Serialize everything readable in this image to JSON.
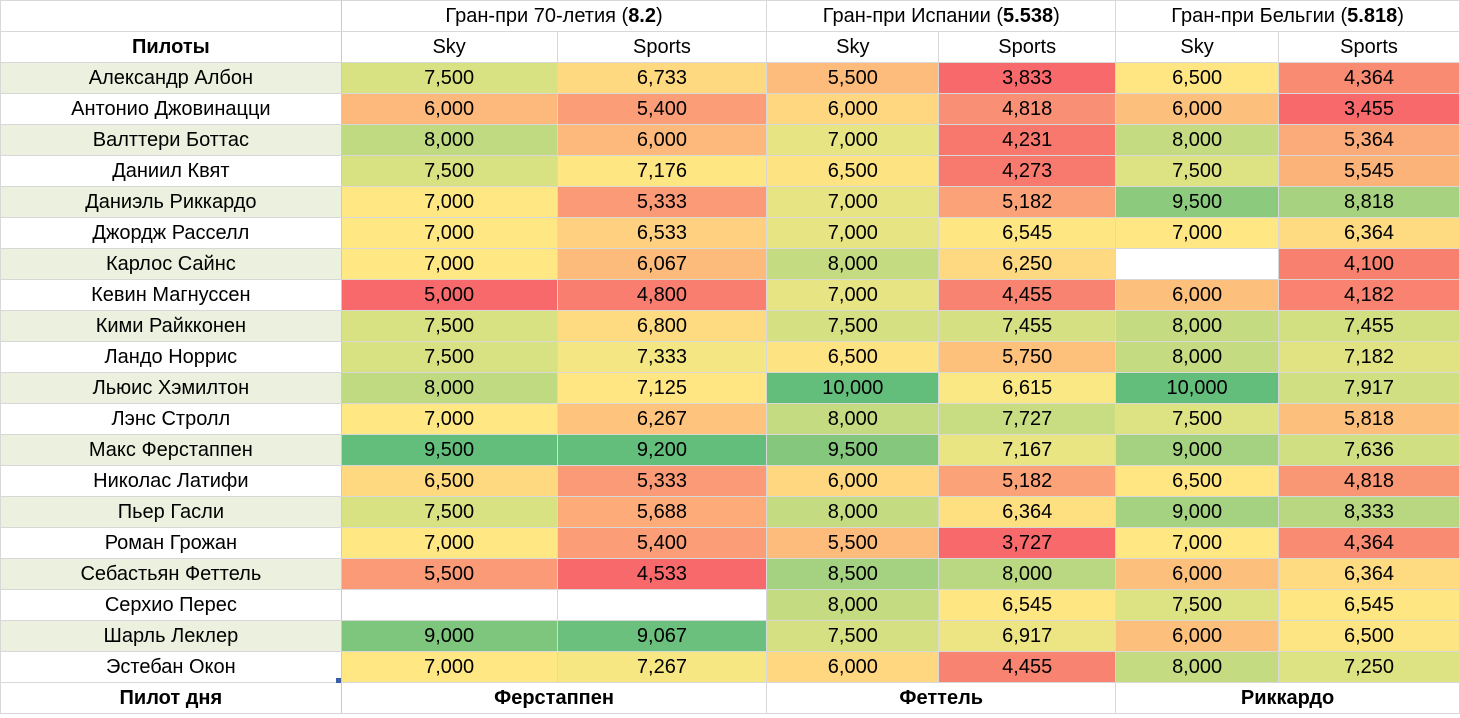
{
  "header": {
    "pilots_label": "Пилоты",
    "races": [
      {
        "name": "Гран-при 70-летия (",
        "score": "8.2",
        "close": ")"
      },
      {
        "name": "Гран-при Испании (",
        "score": "5.538",
        "close": ")"
      },
      {
        "name": "Гран-при Бельгии (",
        "score": "5.818",
        "close": ")"
      }
    ],
    "sub_columns": [
      "Sky",
      "Sports"
    ]
  },
  "rows": [
    {
      "pilot": "Александр Албон",
      "values": [
        "7,500",
        "6,733",
        "5,500",
        "3,833",
        "6,500",
        "4,364"
      ],
      "colors": [
        "#d9e282",
        "#ffd97f",
        "#fdbc7b",
        "#f8696b",
        "#ffe683",
        "#f98b73"
      ]
    },
    {
      "pilot": "Антонио Джовинацци",
      "values": [
        "6,000",
        "5,400",
        "6,000",
        "4,818",
        "6,000",
        "3,455"
      ],
      "colors": [
        "#fdb87b",
        "#fb9d77",
        "#fed780",
        "#f98f74",
        "#fdc07c",
        "#f8696b"
      ]
    },
    {
      "pilot": "Валттери Боттас",
      "values": [
        "8,000",
        "6,000",
        "7,000",
        "4,231",
        "8,000",
        "5,364"
      ],
      "colors": [
        "#c0da81",
        "#fdb87b",
        "#e6e483",
        "#f8786e",
        "#c4db81",
        "#fbaa79"
      ]
    },
    {
      "pilot": "Даниил Квят",
      "values": [
        "7,500",
        "7,176",
        "6,500",
        "4,273",
        "7,500",
        "5,545"
      ],
      "colors": [
        "#d9e282",
        "#fee683",
        "#fee382",
        "#f87a6e",
        "#dde282",
        "#fcb37a"
      ]
    },
    {
      "pilot": "Даниэль Риккардо",
      "values": [
        "7,000",
        "5,333",
        "7,000",
        "5,182",
        "9,500",
        "8,818"
      ],
      "colors": [
        "#ffe884",
        "#fb9a76",
        "#e6e483",
        "#fca279",
        "#8ccb7e",
        "#a7d280"
      ]
    },
    {
      "pilot": "Джордж Расселл",
      "values": [
        "7,000",
        "6,533",
        "7,000",
        "6,545",
        "7,000",
        "6,364"
      ],
      "colors": [
        "#ffe884",
        "#fed07f",
        "#e6e483",
        "#fee683",
        "#ffe884",
        "#fedb81"
      ]
    },
    {
      "pilot": "Карлос Сайнс",
      "values": [
        "7,000",
        "6,067",
        "8,000",
        "6,250",
        "",
        "4,100"
      ],
      "colors": [
        "#ffe884",
        "#fdbb7b",
        "#c4db81",
        "#fed981",
        "#ffffff",
        "#f8806f"
      ]
    },
    {
      "pilot": "Кевин Магнуссен",
      "values": [
        "5,000",
        "4,800",
        "7,000",
        "4,455",
        "6,000",
        "4,182"
      ],
      "colors": [
        "#f8696b",
        "#f97e6f",
        "#e6e483",
        "#f98371",
        "#fdc07c",
        "#f98370"
      ]
    },
    {
      "pilot": "Кими Райкконен",
      "values": [
        "7,500",
        "6,800",
        "7,500",
        "7,455",
        "8,000",
        "7,455"
      ],
      "colors": [
        "#d9e282",
        "#fedb81",
        "#d5e082",
        "#d4e082",
        "#c4db81",
        "#d3e082"
      ]
    },
    {
      "pilot": "Ландо Норрис",
      "values": [
        "7,500",
        "7,333",
        "6,500",
        "5,750",
        "8,000",
        "7,182"
      ],
      "colors": [
        "#d9e282",
        "#f3e683",
        "#fee382",
        "#fdc17c",
        "#c4db81",
        "#e1e383"
      ]
    },
    {
      "pilot": "Льюис Хэмилтон",
      "values": [
        "8,000",
        "7,125",
        "10,000",
        "6,615",
        "10,000",
        "7,917"
      ],
      "colors": [
        "#c0da81",
        "#ffe683",
        "#63be7b",
        "#f9e883",
        "#63be7b",
        "#cfdf82"
      ]
    },
    {
      "pilot": "Лэнс Стролл",
      "values": [
        "7,000",
        "6,267",
        "8,000",
        "7,727",
        "7,500",
        "5,818"
      ],
      "colors": [
        "#ffe884",
        "#fec47d",
        "#c4db81",
        "#c8dc81",
        "#dde282",
        "#fdc07c"
      ]
    },
    {
      "pilot": "Макс Ферстаппен",
      "values": [
        "9,500",
        "9,200",
        "9,500",
        "7,167",
        "9,000",
        "7,636"
      ],
      "colors": [
        "#63be7b",
        "#63be7b",
        "#84c77d",
        "#e9e583",
        "#a5d280",
        "#d0df82"
      ]
    },
    {
      "pilot": "Николас Латифи",
      "values": [
        "6,500",
        "5,333",
        "6,000",
        "5,182",
        "6,500",
        "4,818"
      ],
      "colors": [
        "#fed980",
        "#fb9a76",
        "#fed780",
        "#fca279",
        "#ffe683",
        "#f99673"
      ]
    },
    {
      "pilot": "Пьер Гасли",
      "values": [
        "7,500",
        "5,688",
        "8,000",
        "6,364",
        "9,000",
        "8,333"
      ],
      "colors": [
        "#d9e282",
        "#fcab79",
        "#c4db81",
        "#fee081",
        "#a5d280",
        "#b8d780"
      ]
    },
    {
      "pilot": "Роман Грожан",
      "values": [
        "7,000",
        "5,400",
        "5,500",
        "3,727",
        "7,000",
        "4,364"
      ],
      "colors": [
        "#ffe884",
        "#fb9d77",
        "#fdbc7b",
        "#f8696b",
        "#ffe884",
        "#f98b73"
      ]
    },
    {
      "pilot": "Себастьян Феттель",
      "values": [
        "5,500",
        "4,533",
        "8,500",
        "8,000",
        "6,000",
        "6,364"
      ],
      "colors": [
        "#fb9a76",
        "#f8696b",
        "#a5d280",
        "#b9d881",
        "#fdc07c",
        "#fedb81"
      ]
    },
    {
      "pilot": "Серхио Перес",
      "values": [
        "",
        "",
        "8,000",
        "6,545",
        "7,500",
        "6,545"
      ],
      "colors": [
        "#ffffff",
        "#ffffff",
        "#c4db81",
        "#fee683",
        "#dde282",
        "#fee683"
      ]
    },
    {
      "pilot": "Шарль Леклер",
      "values": [
        "9,000",
        "9,067",
        "7,500",
        "6,917",
        "6,000",
        "6,500"
      ],
      "colors": [
        "#7ec67d",
        "#6ac07c",
        "#d5e082",
        "#ede583",
        "#fdc07c",
        "#fee583"
      ]
    },
    {
      "pilot": "Эстебан Окон",
      "values": [
        "7,000",
        "7,267",
        "6,000",
        "4,455",
        "8,000",
        "7,250"
      ],
      "colors": [
        "#ffe884",
        "#f6e783",
        "#fed780",
        "#f98371",
        "#c4db81",
        "#ddE283"
      ]
    }
  ],
  "footer": {
    "label": "Пилот дня",
    "winners": [
      "Ферстаппен",
      "Феттель",
      "Риккардо"
    ]
  }
}
